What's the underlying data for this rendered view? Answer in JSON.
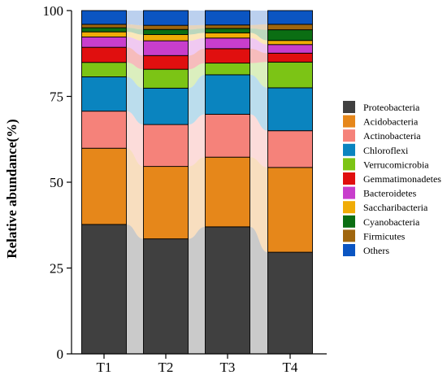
{
  "chart_data": {
    "type": "bar",
    "stacked": true,
    "categories": [
      "T1",
      "T2",
      "T3",
      "T4"
    ],
    "ylabel": "Relative abundance(%)",
    "ylim": [
      0,
      100
    ],
    "yticks": [
      0,
      25,
      50,
      75,
      100
    ],
    "legend_position": "right",
    "series": [
      {
        "name": "Proteobacteria",
        "color": "#404040",
        "values": [
          37.7,
          33.5,
          37.0,
          29.6
        ]
      },
      {
        "name": "Acidobacteria",
        "color": "#E6871A",
        "values": [
          22.2,
          21.1,
          20.3,
          24.7
        ]
      },
      {
        "name": "Actinobacteria",
        "color": "#F5827A",
        "values": [
          10.8,
          12.2,
          12.5,
          10.7
        ]
      },
      {
        "name": "Chloroflexi",
        "color": "#0A84BF",
        "values": [
          10.0,
          10.6,
          11.5,
          12.5
        ]
      },
      {
        "name": "Verrucomicrobia",
        "color": "#7CC415",
        "values": [
          4.2,
          5.5,
          3.4,
          7.5
        ]
      },
      {
        "name": "Gemmatimonadetes",
        "color": "#E00F0F",
        "values": [
          4.4,
          4.0,
          4.2,
          2.6
        ]
      },
      {
        "name": "Bacteroidetes",
        "color": "#C83ECC",
        "values": [
          3.0,
          4.3,
          3.1,
          2.5
        ]
      },
      {
        "name": "Saccharibacteria",
        "color": "#F0AC06",
        "values": [
          1.5,
          1.8,
          1.5,
          1.2
        ]
      },
      {
        "name": "Cyanobacteria",
        "color": "#0B6E13",
        "values": [
          1.2,
          1.5,
          1.3,
          3.1
        ]
      },
      {
        "name": "Firmicutes",
        "color": "#A0660E",
        "values": [
          1.0,
          1.2,
          1.0,
          1.6
        ]
      },
      {
        "name": "Others",
        "color": "#0B55C2",
        "values": [
          4.0,
          4.3,
          4.2,
          4.0
        ]
      }
    ]
  }
}
